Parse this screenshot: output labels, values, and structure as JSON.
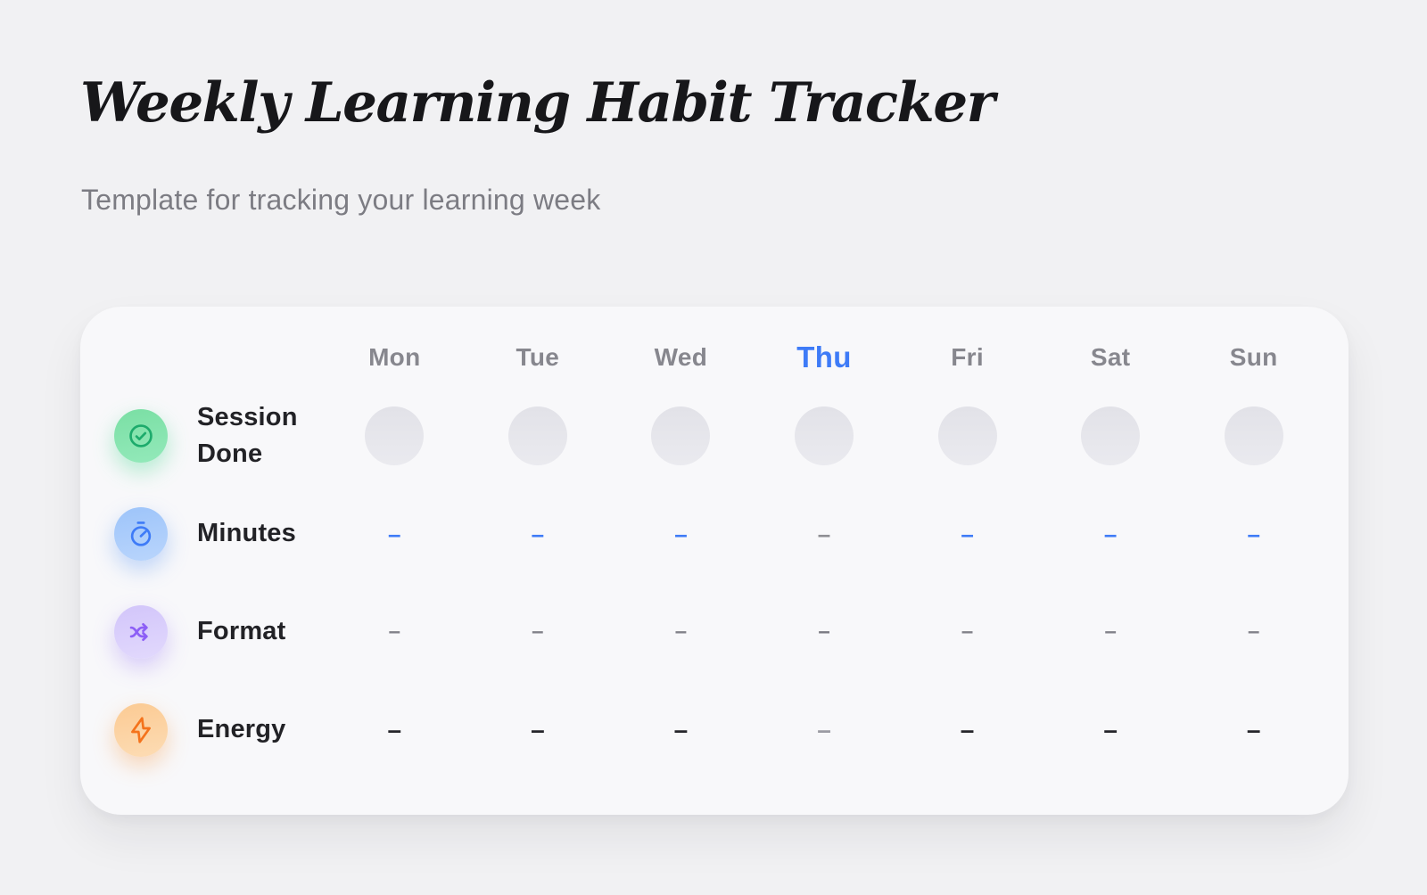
{
  "page": {
    "title": "Weekly Learning Habit Tracker",
    "subtitle": "Template for tracking your learning week"
  },
  "tracker": {
    "days": [
      {
        "label": "Mon",
        "today": false
      },
      {
        "label": "Tue",
        "today": false
      },
      {
        "label": "Wed",
        "today": false
      },
      {
        "label": "Thu",
        "today": true
      },
      {
        "label": "Fri",
        "today": false
      },
      {
        "label": "Sat",
        "today": false
      },
      {
        "label": "Sun",
        "today": false
      }
    ],
    "rows": [
      {
        "id": "session-done",
        "label": "Session Done",
        "icon": "check-circle-icon",
        "type": "circle",
        "badge": {
          "bg_from": "#7adfa4",
          "bg_to": "#93e9ba",
          "icon_color": "#1dab6c",
          "glow": "rgba(74,216,146,0.40)"
        }
      },
      {
        "id": "minutes",
        "label": "Minutes",
        "icon": "stopwatch-icon",
        "type": "dash",
        "placeholder": "–",
        "badge": {
          "bg_from": "#9dc4fa",
          "bg_to": "#b9d5fc",
          "icon_color": "#3e7bf7",
          "glow": "rgba(102,157,246,0.40)"
        },
        "cell_colors": [
          "#3e7bf7",
          "#3e7bf7",
          "#3e7bf7",
          "#8e8e93",
          "#3e7bf7",
          "#3e7bf7",
          "#3e7bf7"
        ]
      },
      {
        "id": "format",
        "label": "Format",
        "icon": "shuffle-icon",
        "type": "dash",
        "placeholder": "–",
        "badge": {
          "bg_from": "#d2c5fa",
          "bg_to": "#e2d9fd",
          "icon_color": "#8d5ff6",
          "glow": "rgba(154,119,246,0.35)"
        },
        "cell_colors": [
          "#82828a",
          "#82828a",
          "#82828a",
          "#7b7b83",
          "#82828a",
          "#82828a",
          "#82828a"
        ]
      },
      {
        "id": "energy",
        "label": "Energy",
        "icon": "lightning-icon",
        "type": "dash",
        "placeholder": "–",
        "badge": {
          "bg_from": "#fbca93",
          "bg_to": "#fddcb4",
          "icon_color": "#f4731c",
          "glow": "rgba(247,148,60,0.35)"
        },
        "cell_colors": [
          "#26262b",
          "#26262b",
          "#26262b",
          "#9b9ba3",
          "#26262b",
          "#26262b",
          "#26262b"
        ]
      }
    ],
    "colors": {
      "page_background": "#f1f1f3",
      "card_background": "#f8f8fa",
      "accent_blue": "#3e7bf7",
      "day_label_gray": "#87878e",
      "row_label_dark": "#222226",
      "placeholder_circle_gray": "#e4e4e9",
      "dash_gray": "#82828a",
      "dash_dark": "#26262b",
      "title_color": "#17171a",
      "subtitle_gray": "#7c7c83"
    }
  }
}
